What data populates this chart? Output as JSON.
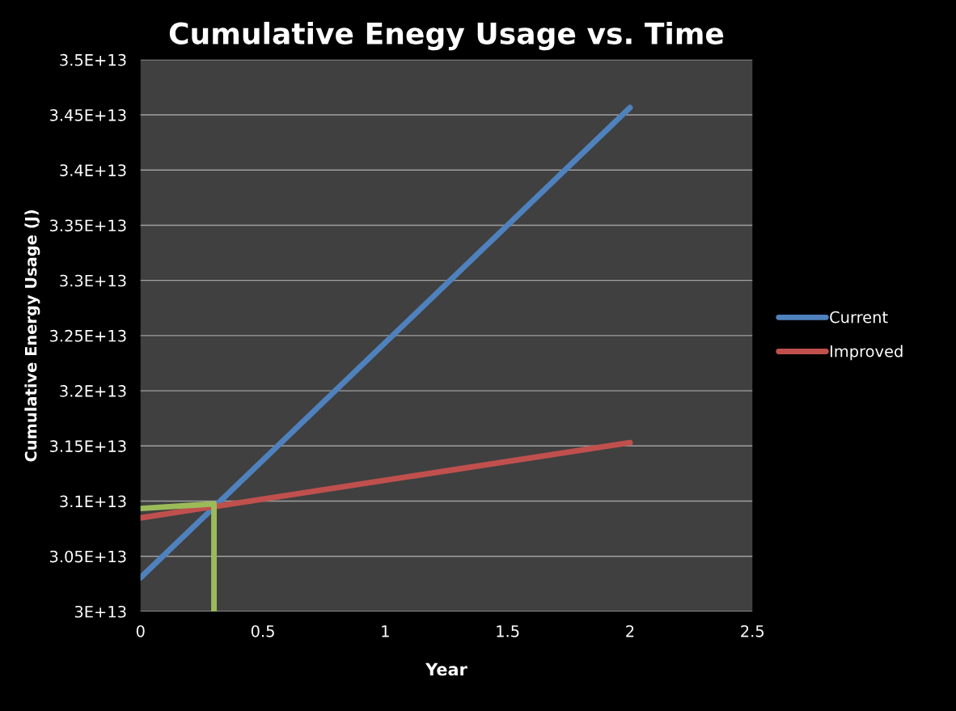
{
  "chart_data": {
    "type": "line",
    "title": "Cumulative Enegy Usage vs. Time",
    "xlabel": "Year",
    "ylabel": "Cumulative Energy Usage (J)",
    "series": [
      {
        "name": "Current",
        "color": "#4f81bd",
        "x": [
          0,
          2
        ],
        "values": [
          30306000000000.0,
          34566000000000.0
        ]
      },
      {
        "name": "Improved",
        "color": "#c0504d",
        "x": [
          0,
          2
        ],
        "values": [
          30848000000000.0,
          31530000000000.0
        ]
      },
      {
        "color": "#9bbb59",
        "x": [
          0,
          0.3,
          0.3
        ],
        "values": [
          30933000000000.0,
          30975000000000.0,
          30000000000000.0
        ]
      }
    ],
    "xlim": [
      0,
      2.5
    ],
    "xticks": [
      0,
      0.5,
      1,
      1.5,
      2,
      2.5
    ],
    "ylim": [
      30000000000000.0,
      35000000000000.0
    ],
    "yticks": [
      {
        "value": 30000000000000.0,
        "label": "3E+13"
      },
      {
        "value": 30500000000000.0,
        "label": "3.05E+13"
      },
      {
        "value": 31000000000000.0,
        "label": "3.1E+13"
      },
      {
        "value": 31500000000000.0,
        "label": "3.15E+13"
      },
      {
        "value": 32000000000000.0,
        "label": "3.2E+13"
      },
      {
        "value": 32500000000000.0,
        "label": "3.25E+13"
      },
      {
        "value": 33000000000000.0,
        "label": "3.3E+13"
      },
      {
        "value": 33500000000000.0,
        "label": "3.35E+13"
      },
      {
        "value": 34000000000000.0,
        "label": "3.4E+13"
      },
      {
        "value": 34500000000000.0,
        "label": "3.45E+13"
      },
      {
        "value": 35000000000000.0,
        "label": "3.5E+13"
      }
    ],
    "grid": "y",
    "legend": "right",
    "marker": "none",
    "line_style": "solid"
  }
}
